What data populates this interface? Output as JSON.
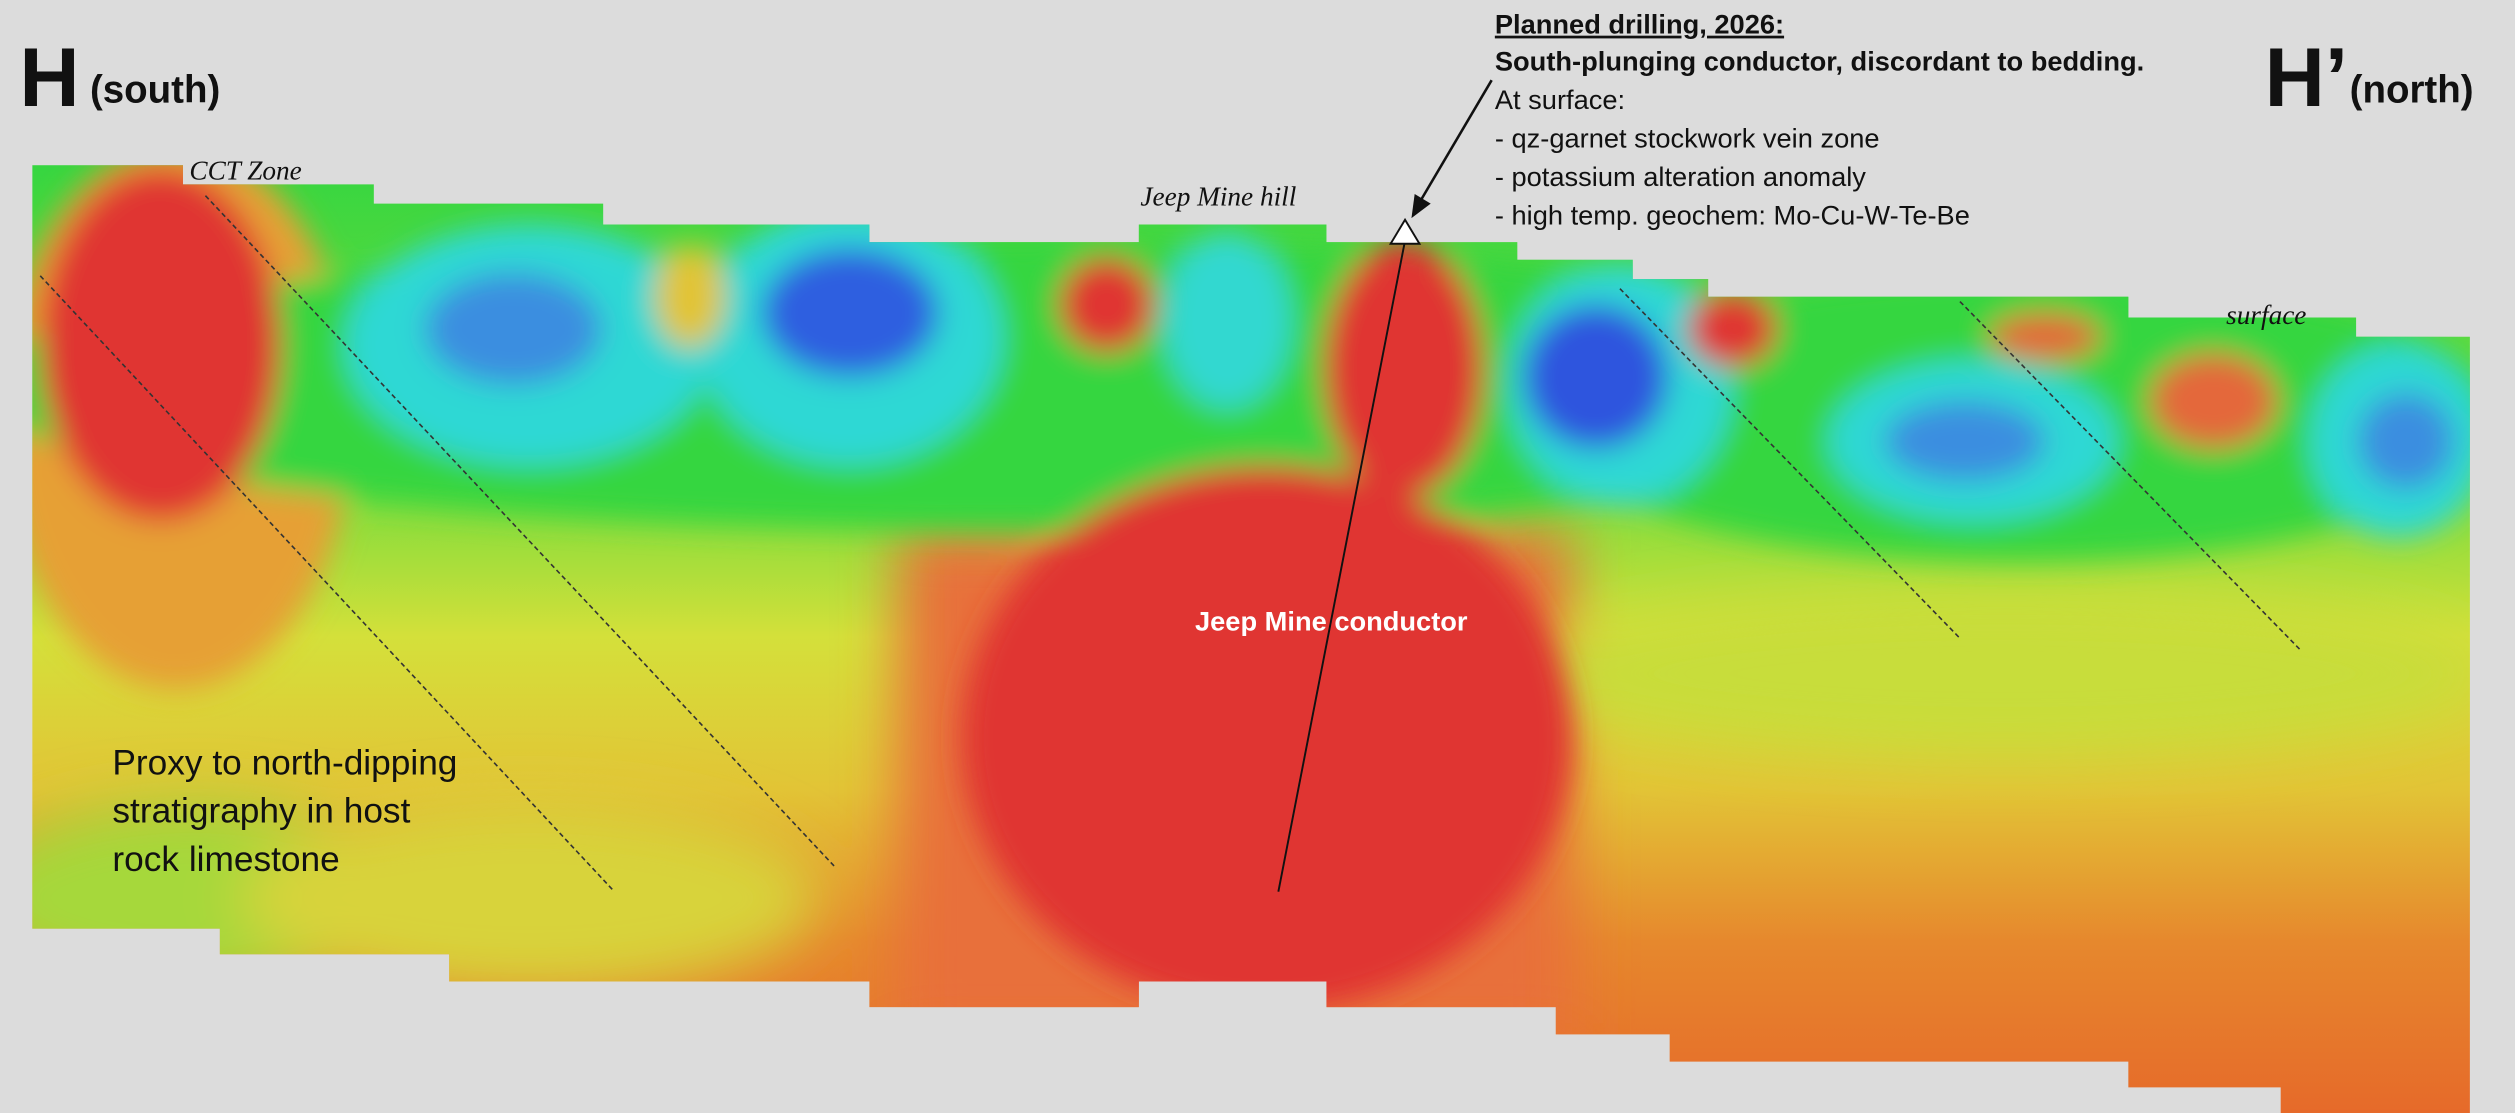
{
  "header": {
    "left": {
      "letter": "H",
      "direction": "(south)"
    },
    "right": {
      "letter": "H’",
      "direction": "(north)"
    }
  },
  "section_labels": {
    "cct_zone": "CCT Zone",
    "jeep_mine_hill": "Jeep Mine hill",
    "surface": "surface"
  },
  "annotation": {
    "title": "Planned drilling, 2026:",
    "subtitle": "South-plunging conductor, discordant to bedding.",
    "intro": "At surface:",
    "items": [
      "- qz-garnet stockwork vein zone",
      "- potassium alteration anomaly",
      "- high temp. geochem: Mo-Cu-W-Te-Be"
    ]
  },
  "conductor_label": "Jeep Mine conductor",
  "note": {
    "lines": [
      "Proxy to north-dipping",
      "stratigraphy in host",
      "rock limestone"
    ]
  }
}
